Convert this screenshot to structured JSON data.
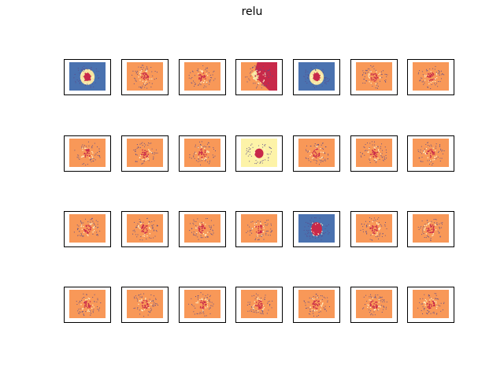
{
  "chart_data": {
    "type": "heatmap",
    "title": "relu",
    "grid": {
      "rows": 4,
      "cols": 7
    },
    "panel_kinds": [
      [
        "blue_ring",
        "orange",
        "orange",
        "split",
        "blue_ring",
        "orange",
        "orange"
      ],
      [
        "orange",
        "orange",
        "orange",
        "yellow",
        "orange",
        "orange",
        "orange"
      ],
      [
        "orange",
        "orange",
        "orange",
        "orange",
        "blue_center",
        "orange",
        "orange"
      ],
      [
        "orange",
        "orange",
        "orange",
        "orange",
        "orange",
        "orange",
        "orange"
      ]
    ],
    "colors": {
      "blue": "#4a72b0",
      "orange": "#f89858",
      "yellow": "#fdf3a8",
      "red": "#c8294a",
      "ring_yellow": "#f6e5a0",
      "frame": "#000000",
      "point_dark": "#5a4a8a",
      "point_red": "#c8294a",
      "point_cream": "#fff6cc"
    },
    "grid_lines": false
  }
}
